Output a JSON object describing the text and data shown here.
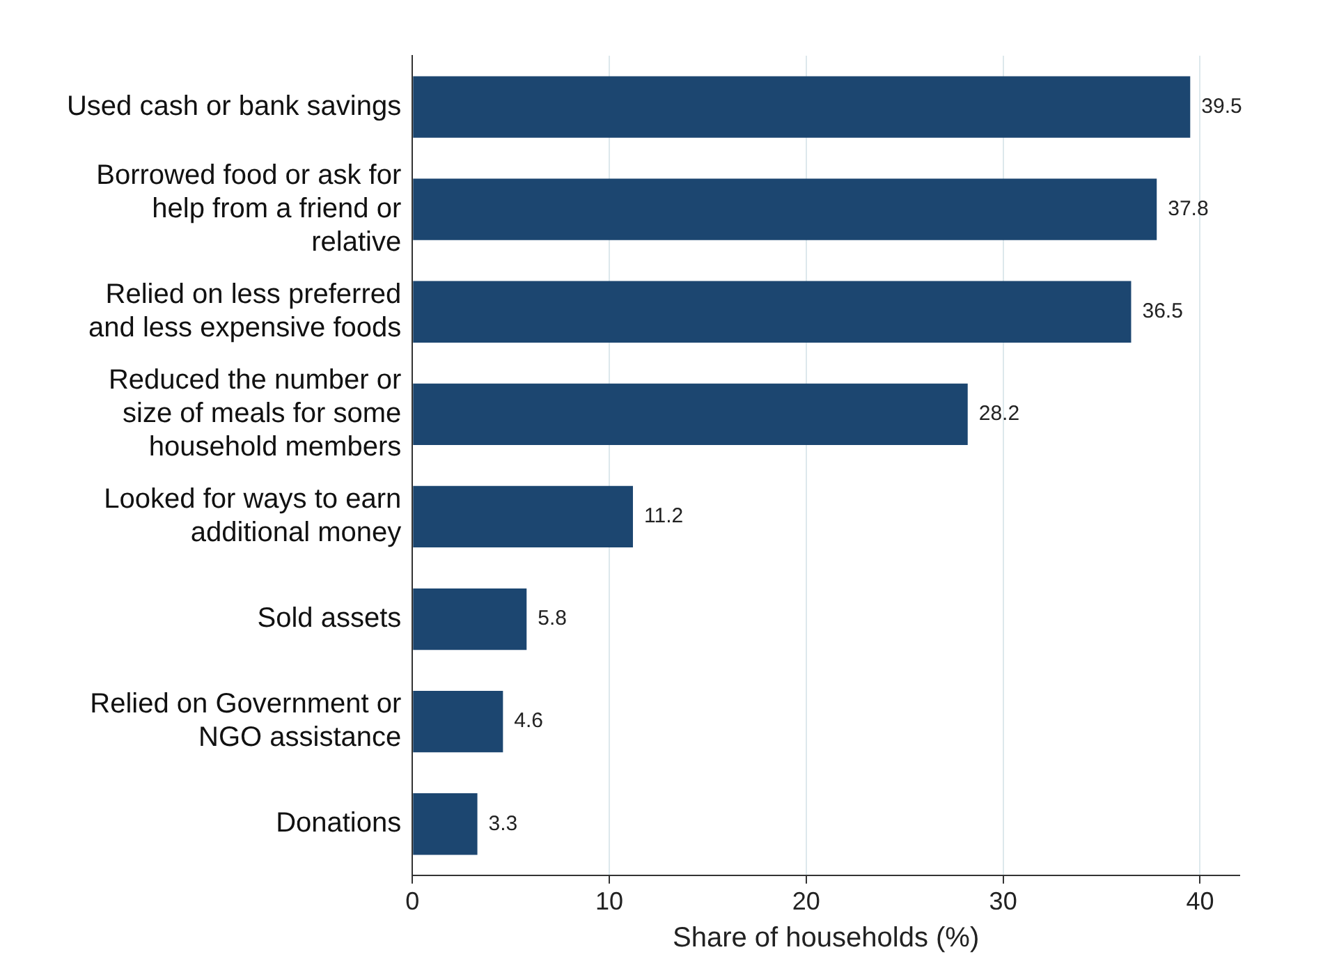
{
  "chart_data": {
    "type": "bar",
    "orientation": "horizontal",
    "categories": [
      "Used cash or bank savings",
      "Borrowed food or ask for help from a friend or relative",
      "Relied on less preferred and less expensive foods",
      "Reduced the number or size of meals for some household members",
      "Looked for ways to earn additional money",
      "Sold assets",
      "Relied on Government or NGO assistance",
      "Donations"
    ],
    "values": [
      39.5,
      37.8,
      36.5,
      28.2,
      11.2,
      5.8,
      4.6,
      3.3
    ],
    "color": "#1c4670",
    "xlim": [
      0,
      42
    ],
    "xticks": [
      0,
      10,
      20,
      30,
      40
    ],
    "xlabel": "Share of households (%)",
    "grid": "x",
    "data_labels": true,
    "legend": false
  }
}
